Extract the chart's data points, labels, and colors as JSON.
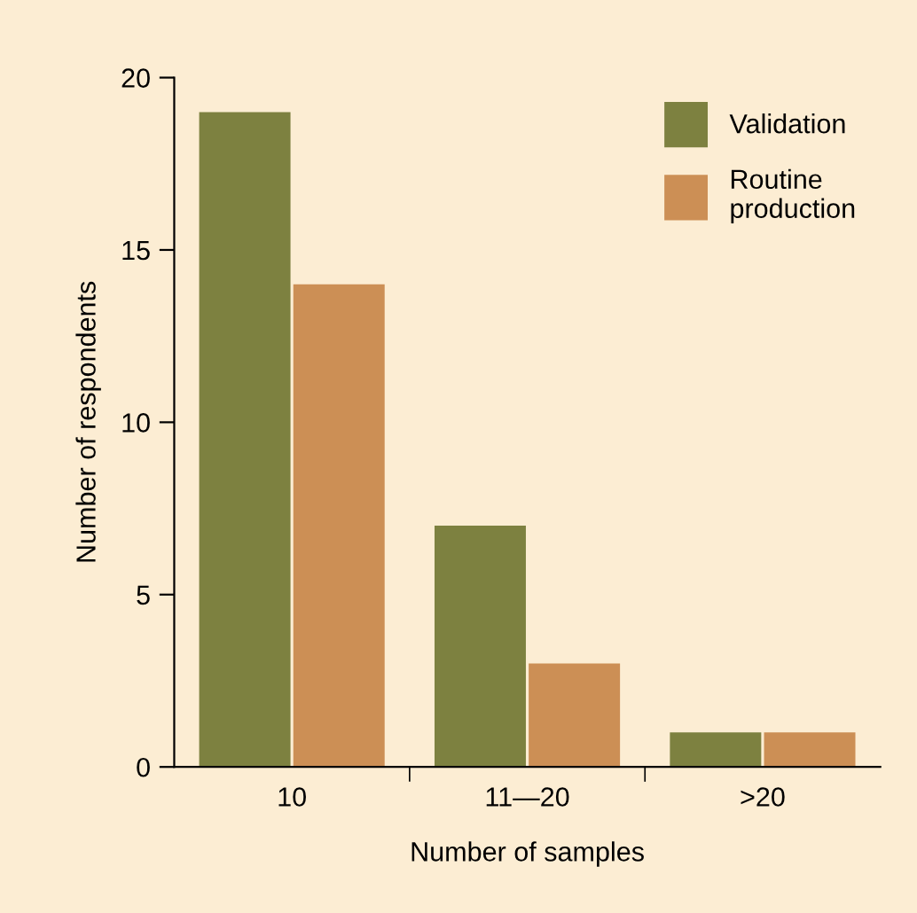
{
  "chart_data": {
    "type": "bar",
    "xlabel": "Number of samples",
    "ylabel": "Number of respondents",
    "categories": [
      "10",
      "11—20",
      ">20"
    ],
    "series": [
      {
        "name": "Validation",
        "color": "#7d8140",
        "values": [
          19,
          7,
          1
        ]
      },
      {
        "name": "Routine\nproduction",
        "color": "#cc8f55",
        "values": [
          14,
          3,
          1
        ]
      }
    ],
    "ylim": [
      0,
      20
    ],
    "yticks": [
      0,
      5,
      10,
      15,
      20
    ],
    "grid": false,
    "legend": "top right"
  }
}
